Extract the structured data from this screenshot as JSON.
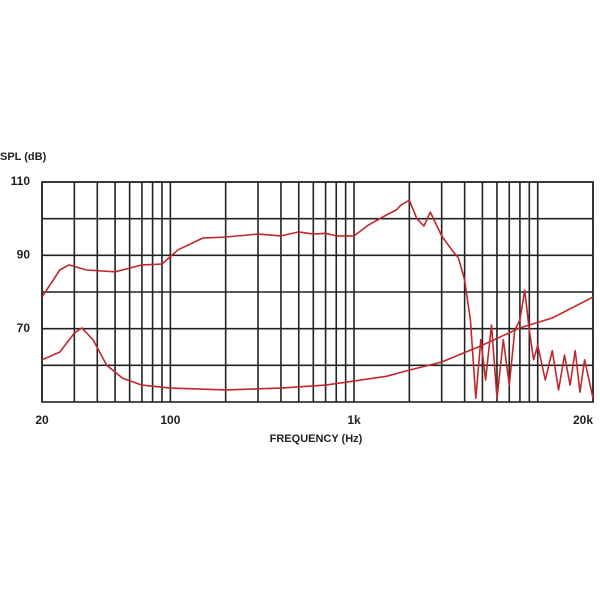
{
  "chart_data": {
    "type": "line",
    "ylabel": "SPL (dB)",
    "xlabel": "FREQUENCY (Hz)",
    "xscale": "log",
    "xlim": [
      20,
      20000
    ],
    "ylim": [
      50,
      110
    ],
    "xticks": [
      20,
      100,
      {
        "value": 1000,
        "label": "1k"
      },
      {
        "value": 20000,
        "label": "20k"
      }
    ],
    "xminor": [
      30,
      40,
      50,
      60,
      70,
      80,
      90,
      200,
      300,
      400,
      500,
      600,
      700,
      800,
      900,
      2000,
      3000,
      4000,
      5000,
      6000,
      7000,
      8000,
      9000,
      10000
    ],
    "yticks": [
      110,
      90,
      70
    ],
    "yminor": [
      100,
      80,
      60
    ],
    "grid": true,
    "series": [
      {
        "color": "#c0282d",
        "x": [
          20,
          25,
          28,
          35,
          50,
          60,
          70,
          90,
          110,
          150,
          200,
          300,
          400,
          500,
          600,
          700,
          800,
          1000,
          1200,
          1500,
          1700,
          1800,
          2000,
          2200,
          2400,
          2600,
          3000,
          3400,
          3700,
          4000,
          4300,
          4600,
          4900,
          5200,
          5600,
          6000,
          6500,
          7000,
          7500,
          8000,
          8500,
          9000,
          9500,
          10000,
          11000,
          12000,
          13000,
          14000,
          15000,
          16000,
          17000,
          18000,
          20000
        ],
        "values": [
          78.6,
          86,
          87.4,
          86,
          85.5,
          86.5,
          87.4,
          87.6,
          91.5,
          94.7,
          95,
          95.8,
          95.3,
          96.4,
          95.8,
          96,
          95.3,
          95.3,
          98.3,
          101,
          102.4,
          103.7,
          105,
          100,
          98,
          101.8,
          95.3,
          91.5,
          89.3,
          83.3,
          72.4,
          51,
          67,
          56,
          71,
          51,
          67,
          54.6,
          69.6,
          72.4,
          80.5,
          69.6,
          61.5,
          65.5,
          56,
          64,
          53.3,
          62.8,
          54.6,
          64,
          52.7,
          61.5,
          51
        ]
      },
      {
        "color": "#c0282d",
        "x": [
          20,
          25,
          30,
          33,
          38,
          45,
          55,
          70,
          100,
          200,
          400,
          700,
          1000,
          1500,
          2000,
          3000,
          5000,
          8000,
          12000,
          20000
        ],
        "values": [
          61.5,
          63.6,
          68.8,
          70.2,
          66.9,
          60,
          56.5,
          54.6,
          53.8,
          53.3,
          53.8,
          54.6,
          55.7,
          57,
          58.7,
          60.9,
          65.5,
          70.2,
          72.9,
          78.6
        ]
      }
    ]
  }
}
